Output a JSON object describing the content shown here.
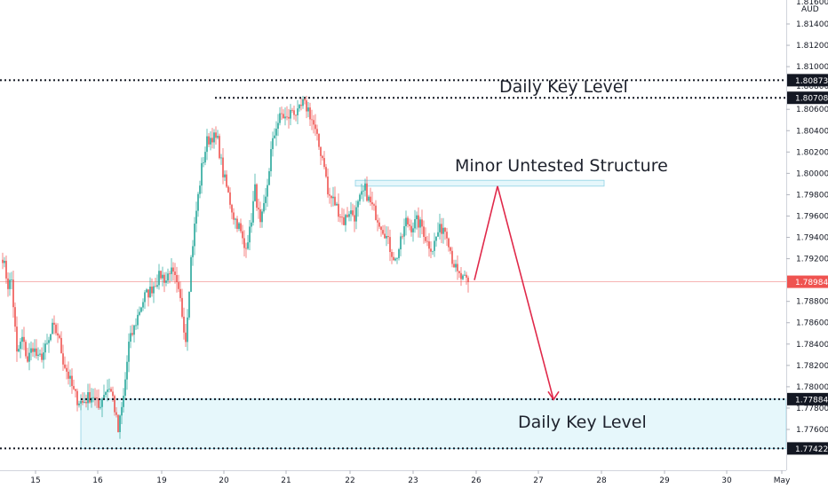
{
  "chart_data": {
    "type": "candlestick",
    "symbol": "",
    "currency": "AUD",
    "ylim": [
      1.773,
      1.818
    ],
    "y_ticks": [
      "1.81400",
      "1.81200",
      "1.81000",
      "1.80600",
      "1.80400",
      "1.80200",
      "1.80000",
      "1.79800",
      "1.79600",
      "1.79400",
      "1.79200",
      "1.78800",
      "1.78600",
      "1.78400",
      "1.78200",
      "1.78000",
      "1.77800",
      "1.77600"
    ],
    "x_ticks": [
      "15",
      "16",
      "19",
      "20",
      "21",
      "22",
      "23",
      "26",
      "27",
      "28",
      "29",
      "30",
      "May"
    ],
    "top_partial_tick": "1.81600",
    "partial_tick_under_badge": "1.80800",
    "price_levels": [
      {
        "id": "daily_key_top",
        "price": "1.80873",
        "label": "Daily Key Level"
      },
      {
        "id": "upper_line",
        "price": "1.80708",
        "label": ""
      },
      {
        "id": "current",
        "price": "1.78984",
        "label": ""
      },
      {
        "id": "zone_top",
        "price": "1.77884",
        "label": "Daily Key Level"
      },
      {
        "id": "zone_bottom",
        "price": "1.77422",
        "label": ""
      }
    ],
    "annotations": [
      "Daily Key Level",
      "Minor Untested Structure",
      "Daily Key Level"
    ],
    "colors": {
      "up": "#26a69a",
      "down": "#ef5350",
      "zone_fill": "#e6f7fb",
      "zone_stroke": "#8fd3e6",
      "arrow": "#e0294a",
      "badge": "#131722",
      "current_badge": "#ef5350"
    },
    "anchor_closes": [
      [
        0,
        1.7922
      ],
      [
        3,
        1.7895
      ],
      [
        5,
        1.79
      ],
      [
        8,
        1.783
      ],
      [
        11,
        1.7845
      ],
      [
        14,
        1.7825
      ],
      [
        17,
        1.7838
      ],
      [
        20,
        1.7825
      ],
      [
        23,
        1.7832
      ],
      [
        26,
        1.7842
      ],
      [
        28,
        1.7855
      ],
      [
        31,
        1.785
      ],
      [
        34,
        1.7825
      ],
      [
        37,
        1.781
      ],
      [
        40,
        1.7795
      ],
      [
        42,
        1.7788
      ],
      [
        45,
        1.7785
      ],
      [
        48,
        1.779
      ],
      [
        51,
        1.7792
      ],
      [
        54,
        1.778
      ],
      [
        57,
        1.7795
      ],
      [
        60,
        1.78
      ],
      [
        62,
        1.779
      ],
      [
        65,
        1.7758
      ],
      [
        68,
        1.779
      ],
      [
        71,
        1.784
      ],
      [
        74,
        1.7855
      ],
      [
        77,
        1.7872
      ],
      [
        80,
        1.7885
      ],
      [
        83,
        1.789
      ],
      [
        86,
        1.7898
      ],
      [
        89,
        1.7905
      ],
      [
        92,
        1.79
      ],
      [
        94,
        1.791
      ],
      [
        97,
        1.79
      ],
      [
        100,
        1.788
      ],
      [
        103,
        1.7845
      ],
      [
        106,
        1.792
      ],
      [
        109,
        1.7965
      ],
      [
        112,
        1.8005
      ],
      [
        115,
        1.803
      ],
      [
        118,
        1.8035
      ],
      [
        121,
        1.803
      ],
      [
        124,
        1.8
      ],
      [
        127,
        1.798
      ],
      [
        130,
        1.796
      ],
      [
        133,
        1.795
      ],
      [
        136,
        1.793
      ],
      [
        139,
        1.7945
      ],
      [
        142,
        1.7985
      ],
      [
        145,
        1.795
      ],
      [
        148,
        1.7975
      ],
      [
        151,
        1.802
      ],
      [
        154,
        1.8045
      ],
      [
        157,
        1.8055
      ],
      [
        160,
        1.805
      ],
      [
        163,
        1.806
      ],
      [
        166,
        1.8055
      ],
      [
        169,
        1.8065
      ],
      [
        172,
        1.806
      ],
      [
        175,
        1.8045
      ],
      [
        178,
        1.8025
      ],
      [
        181,
        1.801
      ],
      [
        183,
        1.798
      ],
      [
        186,
        1.7975
      ],
      [
        189,
        1.7965
      ],
      [
        192,
        1.7955
      ],
      [
        195,
        1.7965
      ],
      [
        198,
        1.796
      ],
      [
        201,
        1.7975
      ],
      [
        204,
        1.7985
      ],
      [
        206,
        1.7975
      ],
      [
        209,
        1.7965
      ],
      [
        212,
        1.7955
      ],
      [
        215,
        1.7945
      ],
      [
        218,
        1.793
      ],
      [
        221,
        1.7918
      ],
      [
        224,
        1.7935
      ],
      [
        227,
        1.7955
      ],
      [
        230,
        1.795
      ],
      [
        233,
        1.7955
      ],
      [
        236,
        1.795
      ],
      [
        239,
        1.7935
      ],
      [
        242,
        1.793
      ],
      [
        245,
        1.7945
      ],
      [
        248,
        1.795
      ],
      [
        250,
        1.7945
      ],
      [
        253,
        1.792
      ],
      [
        256,
        1.7905
      ],
      [
        259,
        1.79
      ],
      [
        262,
        1.7898
      ]
    ]
  }
}
